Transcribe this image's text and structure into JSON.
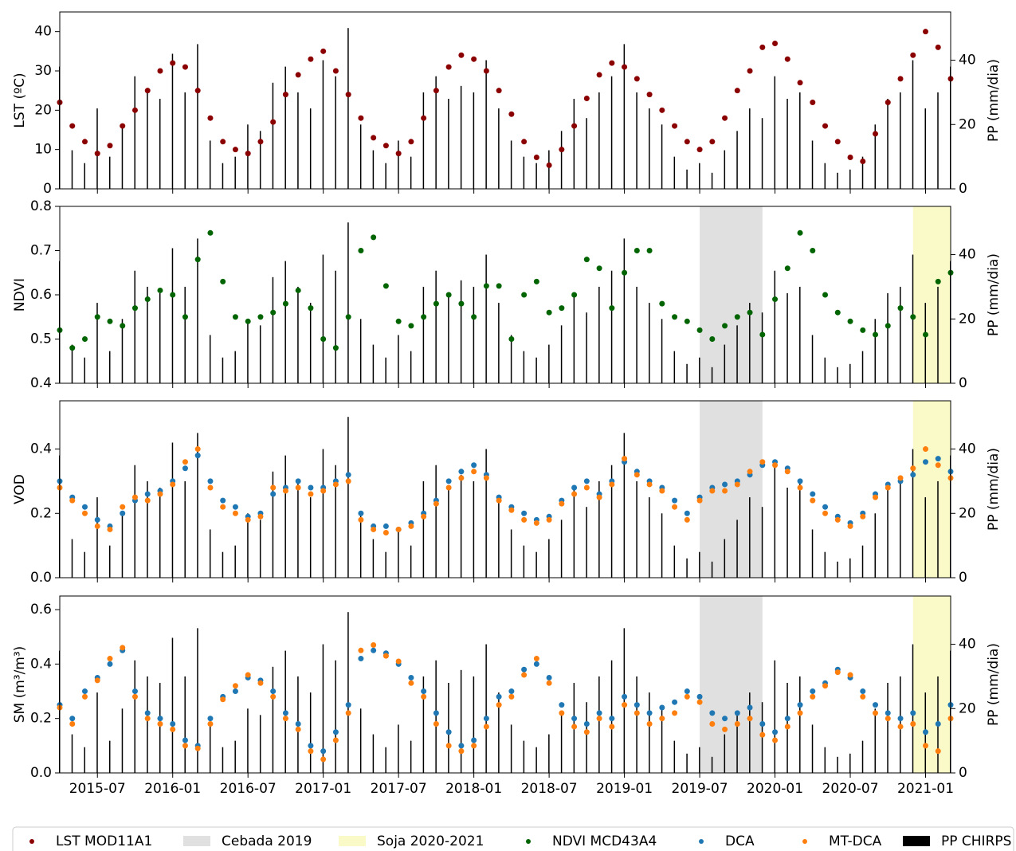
{
  "chart_data": {
    "type": "scatter",
    "x": [
      "2015-04",
      "2015-05",
      "2015-06",
      "2015-07",
      "2015-08",
      "2015-09",
      "2015-10",
      "2015-11",
      "2015-12",
      "2016-01",
      "2016-02",
      "2016-03",
      "2016-04",
      "2016-05",
      "2016-06",
      "2016-07",
      "2016-08",
      "2016-09",
      "2016-10",
      "2016-11",
      "2016-12",
      "2017-01",
      "2017-02",
      "2017-03",
      "2017-04",
      "2017-05",
      "2017-06",
      "2017-07",
      "2017-08",
      "2017-09",
      "2017-10",
      "2017-11",
      "2017-12",
      "2018-01",
      "2018-02",
      "2018-03",
      "2018-04",
      "2018-05",
      "2018-06",
      "2018-07",
      "2018-08",
      "2018-09",
      "2018-10",
      "2018-11",
      "2018-12",
      "2019-01",
      "2019-02",
      "2019-03",
      "2019-04",
      "2019-05",
      "2019-06",
      "2019-07",
      "2019-08",
      "2019-09",
      "2019-10",
      "2019-11",
      "2019-12",
      "2020-01",
      "2020-02",
      "2020-03",
      "2020-04",
      "2020-05",
      "2020-06",
      "2020-07",
      "2020-08",
      "2020-09",
      "2020-10",
      "2020-11",
      "2020-12",
      "2021-01",
      "2021-02",
      "2021-03"
    ],
    "xlim": [
      "2015-04",
      "2021-03"
    ],
    "xticks": [
      "2015-07",
      "2016-01",
      "2016-07",
      "2017-01",
      "2017-07",
      "2018-01",
      "2018-07",
      "2019-01",
      "2019-07",
      "2020-01",
      "2020-07",
      "2021-01"
    ],
    "pp": {
      "name": "PP CHIRPS",
      "color": "#000000",
      "values": [
        38,
        12,
        8,
        25,
        10,
        20,
        35,
        30,
        28,
        42,
        30,
        45,
        15,
        8,
        10,
        20,
        18,
        33,
        38,
        30,
        25,
        40,
        35,
        50,
        20,
        12,
        8,
        15,
        10,
        30,
        35,
        28,
        32,
        30,
        40,
        25,
        15,
        10,
        8,
        12,
        18,
        28,
        22,
        30,
        35,
        45,
        30,
        25,
        20,
        10,
        6,
        8,
        5,
        12,
        18,
        25,
        22,
        35,
        28,
        30,
        15,
        8,
        5,
        6,
        10,
        20,
        28,
        30,
        40,
        25,
        30,
        38
      ]
    },
    "spans": [
      {
        "name": "Cebada 2019",
        "start": "2019-07",
        "end": "2019-12",
        "color": "#e0e0e0"
      },
      {
        "name": "Soja 2020-2021",
        "start": "2020-12",
        "end": "2021-03",
        "color": "#fafac8"
      }
    ],
    "panels": [
      {
        "ylabel": "LST (ºC)",
        "y2label": "PP (mm/dia)",
        "ylim": [
          0,
          45
        ],
        "yticks": [
          0,
          10,
          20,
          30,
          40
        ],
        "y2lim": [
          0,
          55
        ],
        "y2ticks": [
          0,
          20,
          40
        ],
        "shaded": false,
        "series": [
          {
            "name": "LST MOD11A1",
            "color": "#8b0000",
            "values": [
              22,
              16,
              12,
              9,
              11,
              16,
              20,
              25,
              30,
              32,
              31,
              25,
              18,
              12,
              10,
              9,
              12,
              17,
              24,
              29,
              33,
              35,
              30,
              24,
              18,
              13,
              11,
              9,
              12,
              18,
              25,
              31,
              34,
              33,
              30,
              25,
              19,
              12,
              8,
              6,
              10,
              16,
              23,
              29,
              32,
              31,
              28,
              24,
              20,
              16,
              12,
              10,
              12,
              18,
              25,
              30,
              36,
              37,
              33,
              27,
              22,
              16,
              12,
              8,
              7,
              14,
              22,
              28,
              34,
              40,
              36,
              28
            ]
          }
        ]
      },
      {
        "ylabel": "NDVI",
        "y2label": "PP (mm/dia)",
        "ylim": [
          0.4,
          0.8
        ],
        "yticks": [
          0.4,
          0.5,
          0.6,
          0.7,
          0.8
        ],
        "y2lim": [
          0,
          55
        ],
        "y2ticks": [
          0,
          20,
          40
        ],
        "shaded": true,
        "series": [
          {
            "name": "NDVI MCD43A4",
            "color": "#006400",
            "values": [
              0.52,
              0.48,
              0.5,
              0.55,
              0.54,
              0.53,
              0.57,
              0.59,
              0.61,
              0.6,
              0.55,
              0.68,
              0.74,
              0.63,
              0.55,
              0.54,
              0.55,
              0.56,
              0.58,
              0.61,
              0.57,
              0.5,
              0.48,
              0.55,
              0.7,
              0.73,
              0.62,
              0.54,
              0.53,
              0.55,
              0.58,
              0.6,
              0.58,
              0.55,
              0.62,
              0.62,
              0.5,
              0.6,
              0.63,
              0.56,
              0.57,
              0.6,
              0.68,
              0.66,
              0.57,
              0.65,
              0.7,
              0.7,
              0.58,
              0.55,
              0.54,
              0.52,
              0.5,
              0.53,
              0.55,
              0.56,
              0.51,
              0.59,
              0.66,
              0.74,
              0.7,
              0.6,
              0.56,
              0.54,
              0.52,
              0.51,
              0.53,
              0.57,
              0.55,
              0.51,
              0.63,
              0.65
            ]
          }
        ]
      },
      {
        "ylabel": "VOD",
        "y2label": "PP (mm/dia)",
        "ylim": [
          0,
          0.55
        ],
        "yticks": [
          {
            "value": 0,
            "label": "0.0"
          },
          0.2,
          0.4
        ],
        "y2lim": [
          0,
          55
        ],
        "y2ticks": [
          0,
          20,
          40
        ],
        "shaded": true,
        "series": [
          {
            "name": "DCA",
            "color": "#1f77b4",
            "values": [
              0.3,
              0.25,
              0.22,
              0.18,
              0.16,
              0.2,
              0.24,
              0.26,
              0.27,
              0.3,
              0.34,
              0.38,
              0.3,
              0.24,
              0.22,
              0.19,
              0.2,
              0.26,
              0.28,
              0.3,
              0.28,
              0.28,
              0.3,
              0.32,
              0.2,
              0.16,
              0.16,
              0.15,
              0.17,
              0.2,
              0.24,
              0.3,
              0.33,
              0.35,
              0.32,
              0.25,
              0.22,
              0.2,
              0.18,
              0.19,
              0.24,
              0.28,
              0.3,
              0.26,
              0.3,
              0.36,
              0.33,
              0.3,
              0.28,
              0.24,
              0.2,
              0.25,
              0.28,
              0.29,
              0.3,
              0.32,
              0.35,
              0.36,
              0.34,
              0.3,
              0.26,
              0.22,
              0.19,
              0.17,
              0.2,
              0.26,
              0.29,
              0.3,
              0.32,
              0.36,
              0.37,
              0.33
            ]
          },
          {
            "name": "MT-DCA",
            "color": "#ff7f0e",
            "values": [
              0.28,
              0.24,
              0.2,
              0.16,
              0.15,
              0.22,
              0.25,
              0.24,
              0.26,
              0.29,
              0.36,
              0.4,
              0.28,
              0.22,
              0.2,
              0.18,
              0.19,
              0.28,
              0.27,
              0.28,
              0.26,
              0.27,
              0.29,
              0.3,
              0.18,
              0.15,
              0.14,
              0.15,
              0.16,
              0.19,
              0.23,
              0.28,
              0.31,
              0.33,
              0.31,
              0.24,
              0.21,
              0.18,
              0.17,
              0.18,
              0.23,
              0.26,
              0.28,
              0.25,
              0.29,
              0.37,
              0.32,
              0.29,
              0.27,
              0.22,
              0.18,
              0.24,
              0.27,
              0.27,
              0.29,
              0.33,
              0.36,
              0.35,
              0.33,
              0.28,
              0.24,
              0.2,
              0.18,
              0.16,
              0.19,
              0.25,
              0.28,
              0.31,
              0.34,
              0.4,
              0.35,
              0.31
            ]
          }
        ]
      },
      {
        "ylabel": "SM (m³/m³)",
        "y2label": "PP (mm/dia)",
        "ylim": [
          0,
          0.65
        ],
        "yticks": [
          {
            "value": 0,
            "label": "0.0"
          },
          0.2,
          0.4,
          0.6
        ],
        "y2lim": [
          0,
          55
        ],
        "y2ticks": [
          0,
          20,
          40
        ],
        "shaded": true,
        "series": [
          {
            "name": "DCA",
            "color": "#1f77b4",
            "values": [
              0.25,
              0.2,
              0.3,
              0.35,
              0.4,
              0.45,
              0.3,
              0.22,
              0.2,
              0.18,
              0.12,
              0.1,
              0.2,
              0.28,
              0.3,
              0.35,
              0.34,
              0.3,
              0.22,
              0.18,
              0.1,
              0.08,
              0.15,
              0.25,
              0.42,
              0.45,
              0.44,
              0.4,
              0.35,
              0.3,
              0.22,
              0.15,
              0.1,
              0.12,
              0.2,
              0.28,
              0.3,
              0.38,
              0.4,
              0.35,
              0.25,
              0.2,
              0.18,
              0.22,
              0.2,
              0.28,
              0.25,
              0.22,
              0.24,
              0.26,
              0.3,
              0.28,
              0.22,
              0.2,
              0.22,
              0.24,
              0.18,
              0.15,
              0.2,
              0.25,
              0.3,
              0.33,
              0.38,
              0.35,
              0.3,
              0.25,
              0.22,
              0.2,
              0.22,
              0.15,
              0.18,
              0.25
            ]
          },
          {
            "name": "MT-DCA",
            "color": "#ff7f0e",
            "values": [
              0.24,
              0.18,
              0.28,
              0.34,
              0.42,
              0.46,
              0.28,
              0.2,
              0.18,
              0.16,
              0.1,
              0.09,
              0.18,
              0.27,
              0.32,
              0.36,
              0.33,
              0.28,
              0.2,
              0.16,
              0.08,
              0.05,
              0.12,
              0.22,
              0.45,
              0.47,
              0.43,
              0.41,
              0.33,
              0.28,
              0.18,
              0.1,
              0.08,
              0.1,
              0.17,
              0.25,
              0.28,
              0.36,
              0.42,
              0.33,
              0.22,
              0.17,
              0.15,
              0.2,
              0.17,
              0.25,
              0.22,
              0.18,
              0.2,
              0.22,
              0.28,
              0.26,
              0.18,
              0.16,
              0.18,
              0.2,
              0.14,
              0.12,
              0.17,
              0.22,
              0.28,
              0.32,
              0.37,
              0.36,
              0.28,
              0.22,
              0.2,
              0.17,
              0.18,
              0.1,
              0.08,
              0.2
            ]
          }
        ]
      }
    ]
  }
}
